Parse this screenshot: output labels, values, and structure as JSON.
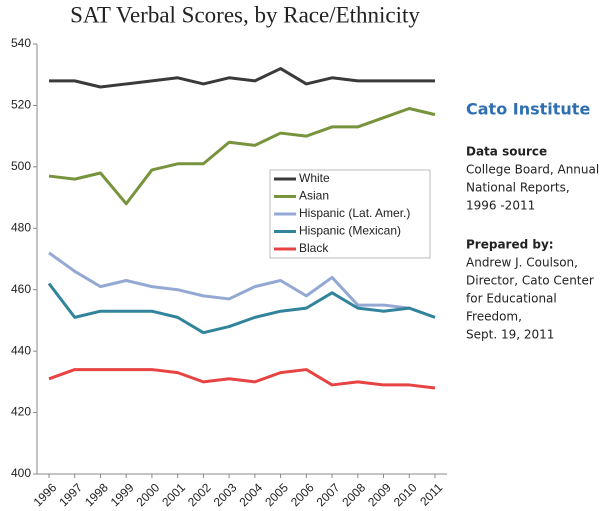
{
  "chart_data": {
    "type": "line",
    "title": "SAT Verbal Scores, by Race/Ethnicity",
    "categories": [
      "1996",
      "1997",
      "1998",
      "1999",
      "2000",
      "2001",
      "2002",
      "2003",
      "2004",
      "2005",
      "2006",
      "2007",
      "2008",
      "2009",
      "2010",
      "2011"
    ],
    "series": [
      {
        "name": "White",
        "color": "#3a3a3a",
        "values": [
          528,
          528,
          526,
          527,
          528,
          529,
          527,
          529,
          528,
          532,
          527,
          529,
          528,
          528,
          528,
          528
        ]
      },
      {
        "name": "Asian",
        "color": "#77933c",
        "values": [
          497,
          496,
          498,
          488,
          499,
          501,
          501,
          508,
          507,
          511,
          510,
          513,
          513,
          516,
          519,
          517
        ]
      },
      {
        "name": "Hispanic (Lat. Amer.)",
        "color": "#94a8d4",
        "values": [
          472,
          466,
          461,
          463,
          461,
          460,
          458,
          457,
          461,
          463,
          458,
          464,
          455,
          455,
          454,
          451
        ]
      },
      {
        "name": "Hispanic (Mexican)",
        "color": "#31849b",
        "values": [
          462,
          451,
          453,
          453,
          453,
          451,
          446,
          448,
          451,
          453,
          454,
          459,
          454,
          453,
          454,
          451
        ]
      },
      {
        "name": "Black",
        "color": "#e84343",
        "values": [
          431,
          434,
          434,
          434,
          434,
          433,
          430,
          431,
          430,
          433,
          434,
          429,
          430,
          429,
          429,
          428
        ]
      }
    ],
    "ylim": [
      400,
      540
    ],
    "yticks": [
      400,
      420,
      440,
      460,
      480,
      500,
      520,
      540
    ],
    "grid": false,
    "legend": "center"
  },
  "sidebar": {
    "org": "Cato Institute",
    "source_heading": "Data source",
    "source_lines": [
      "College Board, Annual",
      "National Reports,",
      "1996  -2011"
    ],
    "prepared_heading": "Prepared by:",
    "prepared_lines": [
      "Andrew J. Coulson,",
      "Director, Cato Center",
      "for Educational",
      "Freedom,",
      "Sept. 19,  2011"
    ]
  }
}
